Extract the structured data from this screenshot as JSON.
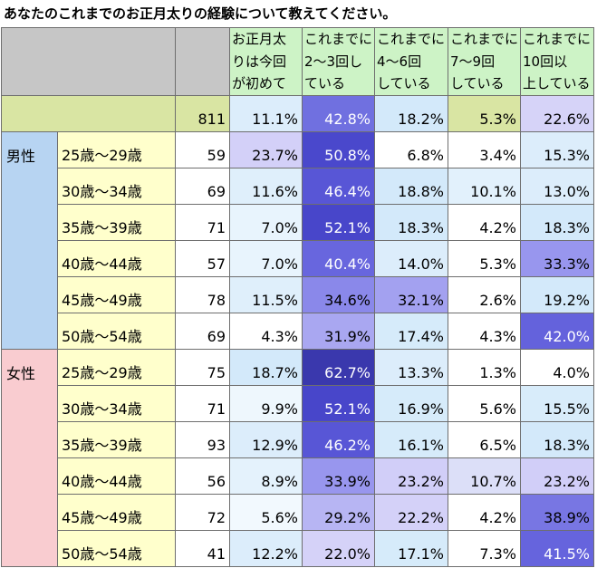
{
  "colors": {
    "border": "#6e6e6e",
    "header_left_bg": "#c6c6c6",
    "header_bg": "#cdf3c6",
    "total_bg": "#d9e5a3",
    "age_bg": "#ffffcc",
    "n_bg": "#ffffff"
  },
  "chart_data": {
    "type": "table",
    "title": "あなたのこれまでのお正月太りの経験について教えてください。",
    "unit": "%",
    "columns": [
      {
        "label_lines": [
          "お正月太",
          "りは今回",
          "が初めて"
        ]
      },
      {
        "label_lines": [
          "これまでに",
          "2～3回し",
          "ている"
        ]
      },
      {
        "label_lines": [
          "これまでに",
          "4～6回",
          "している"
        ]
      },
      {
        "label_lines": [
          "これまでに",
          "7～9回",
          "している"
        ]
      },
      {
        "label_lines": [
          "これまでに",
          "10回以",
          "上している"
        ]
      }
    ],
    "total": {
      "n": 811,
      "values": [
        11.1,
        42.8,
        18.2,
        5.3,
        22.6
      ],
      "colors": [
        "#dcedfb",
        "#7070e0",
        "#d3e9fa",
        "#d9e5a3",
        "#d6d3f8"
      ]
    },
    "groups": [
      {
        "label": "男性",
        "color": "#b7d4f2",
        "rows": [
          {
            "age": "25歳～29歳",
            "n": 59,
            "values": [
              23.7,
              50.8,
              6.8,
              3.4,
              15.3
            ],
            "colors": [
              "#d3d0f8",
              "#4a48cc",
              "#ffffff",
              "#ffffff",
              "#dcedfb"
            ]
          },
          {
            "age": "30歳～34歳",
            "n": 69,
            "values": [
              11.6,
              46.4,
              18.8,
              10.1,
              13.0
            ],
            "colors": [
              "#dfeffb",
              "#5856d6",
              "#d3e9fa",
              "#e2f1fc",
              "#dcedfb"
            ]
          },
          {
            "age": "35歳～39歳",
            "n": 71,
            "values": [
              7.0,
              52.1,
              18.3,
              4.2,
              18.3
            ],
            "colors": [
              "#e8f4fd",
              "#4846ca",
              "#d3e9fa",
              "#ffffff",
              "#d3e9fa"
            ]
          },
          {
            "age": "40歳～44歳",
            "n": 57,
            "values": [
              7.0,
              40.4,
              14.0,
              5.3,
              33.3
            ],
            "colors": [
              "#e8f4fd",
              "#6866de",
              "#dcedfb",
              "#ffffff",
              "#9896ee"
            ]
          },
          {
            "age": "45歳～49歳",
            "n": 78,
            "values": [
              11.5,
              34.6,
              32.1,
              2.6,
              19.2
            ],
            "colors": [
              "#dfeffb",
              "#8a88ea",
              "#a3a1f0",
              "#ffffff",
              "#d3e9fa"
            ]
          },
          {
            "age": "50歳～54歳",
            "n": 69,
            "values": [
              4.3,
              31.9,
              17.4,
              4.3,
              42.0
            ],
            "colors": [
              "#ffffff",
              "#a9a7f1",
              "#d6ebfa",
              "#ffffff",
              "#6462dc"
            ]
          }
        ]
      },
      {
        "label": "女性",
        "color": "#f9ccd0",
        "rows": [
          {
            "age": "25歳～29歳",
            "n": 75,
            "values": [
              18.7,
              62.7,
              13.3,
              1.3,
              4.0
            ],
            "colors": [
              "#d3e9fa",
              "#3a38ad",
              "#dcedfb",
              "#ffffff",
              "#ffffff"
            ]
          },
          {
            "age": "30歳～34歳",
            "n": 71,
            "values": [
              9.9,
              52.1,
              16.9,
              5.6,
              15.5
            ],
            "colors": [
              "#eef7fd",
              "#4846ca",
              "#d6ebfa",
              "#ffffff",
              "#d8ecfa"
            ]
          },
          {
            "age": "35歳～39歳",
            "n": 93,
            "values": [
              12.9,
              46.2,
              16.1,
              6.5,
              18.3
            ],
            "colors": [
              "#dcedfb",
              "#5856d6",
              "#d6ebfa",
              "#ffffff",
              "#d3e9fa"
            ]
          },
          {
            "age": "40歳～44歳",
            "n": 56,
            "values": [
              8.9,
              33.9,
              23.2,
              10.7,
              23.2
            ],
            "colors": [
              "#e4f2fc",
              "#9896ee",
              "#d1cef8",
              "#dcdff8",
              "#d1cef8"
            ]
          },
          {
            "age": "45歳～49歳",
            "n": 72,
            "values": [
              5.6,
              29.2,
              22.2,
              4.2,
              38.9
            ],
            "colors": [
              "#f2f9fe",
              "#b7b5f3",
              "#d4d1f8",
              "#ffffff",
              "#7876e3"
            ]
          },
          {
            "age": "50歳～54歳",
            "n": 41,
            "values": [
              12.2,
              22.0,
              17.1,
              7.3,
              41.5
            ],
            "colors": [
              "#dcedfb",
              "#d5d2f8",
              "#d6ebfa",
              "#ffffff",
              "#6664dd"
            ]
          }
        ]
      }
    ]
  }
}
